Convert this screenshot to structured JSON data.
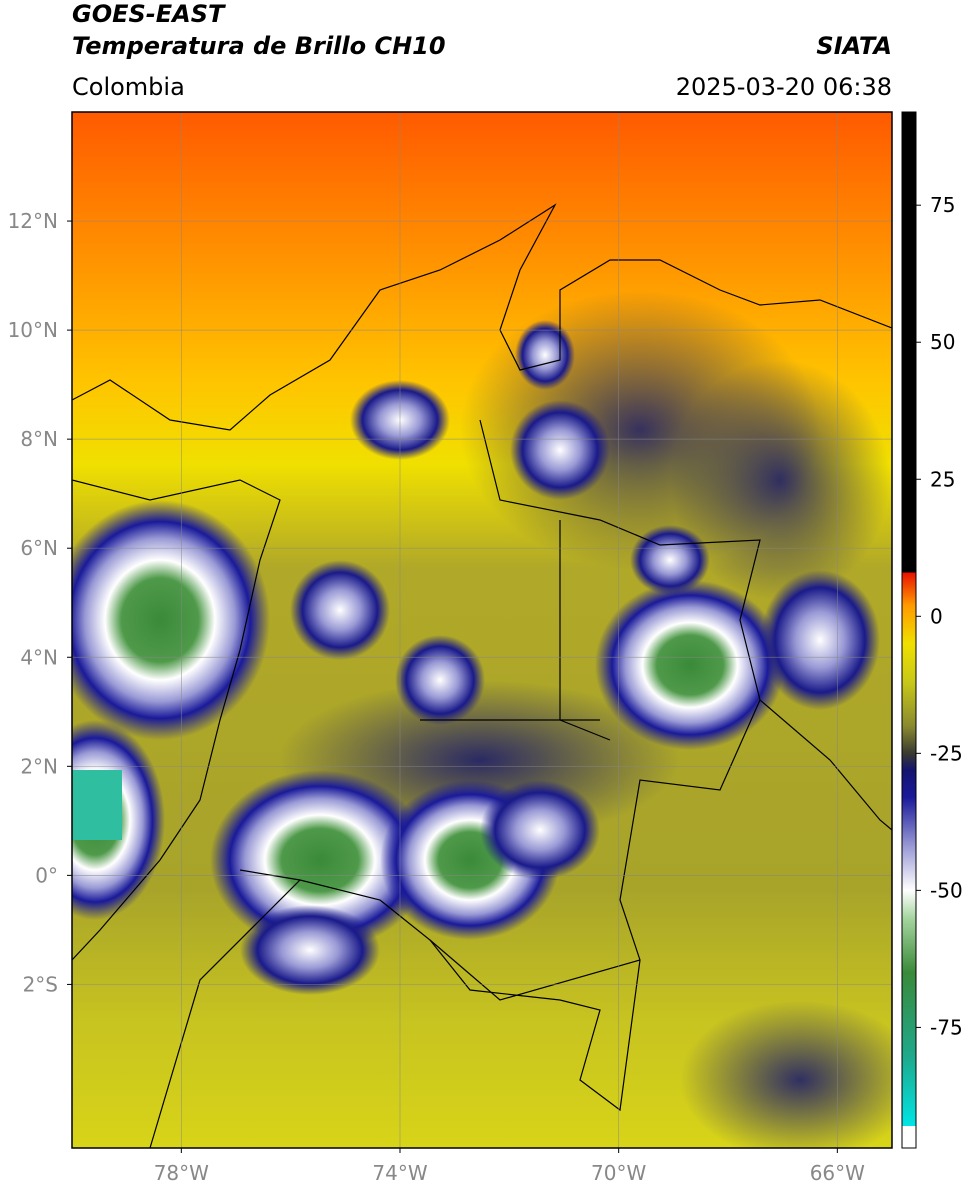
{
  "header": {
    "title_line1": "GOES-EAST",
    "title_line2": "Temperatura de Brillo CH10",
    "source": "SIATA",
    "region": "Colombia",
    "timestamp": "2025-03-20 06:38"
  },
  "map": {
    "lon_range": [
      -80,
      -65
    ],
    "lat_range": [
      -5,
      14
    ],
    "grid": true,
    "lon_ticks": [
      {
        "value": -78,
        "label": "78°W"
      },
      {
        "value": -74,
        "label": "74°W"
      },
      {
        "value": -70,
        "label": "70°W"
      },
      {
        "value": -66,
        "label": "66°W"
      }
    ],
    "lat_ticks": [
      {
        "value": 12,
        "label": "12°N"
      },
      {
        "value": 10,
        "label": "10°N"
      },
      {
        "value": 8,
        "label": "8°N"
      },
      {
        "value": 6,
        "label": "6°N"
      },
      {
        "value": 4,
        "label": "4°N"
      },
      {
        "value": 2,
        "label": "2°N"
      },
      {
        "value": 0,
        "label": "0°"
      },
      {
        "value": -2,
        "label": "2°S"
      }
    ]
  },
  "colorbar": {
    "range": [
      -97,
      92
    ],
    "ticks": [
      75,
      50,
      25,
      0,
      -25,
      -50,
      -75
    ],
    "stops": [
      {
        "value": -97,
        "color": "#ffffff"
      },
      {
        "value": -93,
        "color": "#ffffff"
      },
      {
        "value": -93,
        "color": "#00e5e5"
      },
      {
        "value": -80,
        "color": "#1fa88a"
      },
      {
        "value": -65,
        "color": "#3a8a3a"
      },
      {
        "value": -55,
        "color": "#a6d6a0"
      },
      {
        "value": -50,
        "color": "#ffffff"
      },
      {
        "value": -42,
        "color": "#9a9ad6"
      },
      {
        "value": -33,
        "color": "#1a1a9a"
      },
      {
        "value": -28,
        "color": "#14146e"
      },
      {
        "value": -25,
        "color": "#3a3a30"
      },
      {
        "value": -20,
        "color": "#8a8a30"
      },
      {
        "value": -12,
        "color": "#c8c818"
      },
      {
        "value": -5,
        "color": "#f0e000"
      },
      {
        "value": 2,
        "color": "#ff9a00"
      },
      {
        "value": 8,
        "color": "#e81000"
      },
      {
        "value": 8,
        "color": "#000000"
      },
      {
        "value": 92,
        "color": "#000000"
      }
    ]
  }
}
